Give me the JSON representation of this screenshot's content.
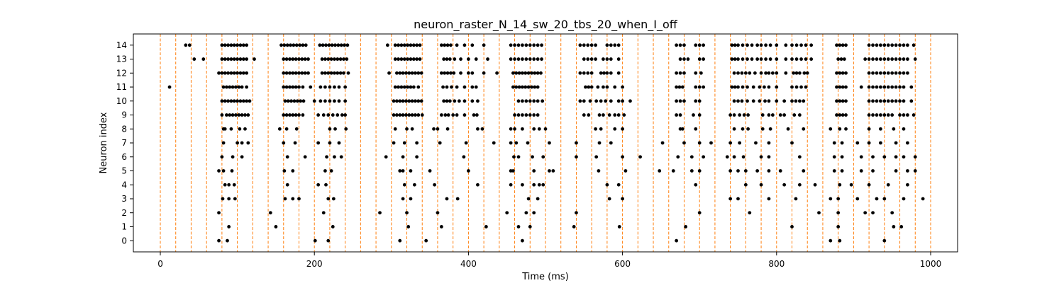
{
  "chart_data": {
    "type": "scatter",
    "title": "neuron_raster_N_14_sw_20_tbs_20_when_I_off",
    "xlabel": "Time (ms)",
    "ylabel": "Neuron index",
    "xlim": [
      -35,
      1035
    ],
    "ylim": [
      -0.8,
      14.8
    ],
    "xticks": [
      0,
      200,
      400,
      600,
      800,
      1000
    ],
    "yticks": [
      0,
      1,
      2,
      3,
      4,
      5,
      6,
      7,
      8,
      9,
      10,
      11,
      12,
      13,
      14
    ],
    "grid": false,
    "legend": "none",
    "marker_color": "#000000",
    "vline_color": "#ff7f0e",
    "vlines_x": [
      0,
      20,
      40,
      60,
      80,
      100,
      120,
      140,
      160,
      180,
      200,
      220,
      240,
      260,
      280,
      300,
      320,
      340,
      360,
      380,
      400,
      420,
      440,
      460,
      480,
      500,
      520,
      540,
      560,
      580,
      600,
      620,
      640,
      660,
      680,
      700,
      720,
      740,
      760,
      780,
      800,
      820,
      840,
      860,
      880,
      900,
      920,
      940,
      960,
      980,
      1000
    ],
    "series": [
      {
        "neuron": 0,
        "spike_times": [
          76,
          87,
          201,
          218,
          311,
          345,
          470,
          670,
          870,
          882,
          940
        ]
      },
      {
        "neuron": 1,
        "spike_times": [
          89,
          150,
          224,
          322,
          365,
          423,
          465,
          480,
          537,
          596,
          682,
          820,
          880,
          952,
          962
        ]
      },
      {
        "neuron": 2,
        "spike_times": [
          76,
          143,
          212,
          285,
          320,
          360,
          450,
          475,
          485,
          540,
          700,
          765,
          855,
          880,
          915,
          925,
          950
        ]
      },
      {
        "neuron": 3,
        "spike_times": [
          81,
          89,
          97,
          162,
          172,
          180,
          218,
          225,
          315,
          325,
          372,
          386,
          478,
          490,
          583,
          600,
          740,
          750,
          790,
          825,
          870,
          880,
          905,
          930,
          940,
          965,
          990
        ]
      },
      {
        "neuron": 4,
        "spike_times": [
          84,
          89,
          96,
          165,
          205,
          215,
          317,
          330,
          356,
          412,
          455,
          470,
          485,
          492,
          497,
          580,
          595,
          695,
          760,
          780,
          810,
          830,
          850,
          882,
          897,
          920,
          945,
          970
        ]
      },
      {
        "neuron": 5,
        "spike_times": [
          76,
          82,
          93,
          161,
          172,
          214,
          222,
          311,
          315,
          325,
          350,
          400,
          455,
          458,
          485,
          505,
          510,
          569,
          604,
          648,
          666,
          690,
          700,
          740,
          750,
          760,
          775,
          790,
          805,
          835,
          875,
          885,
          910,
          925,
          955,
          970,
          980
        ]
      },
      {
        "neuron": 6,
        "spike_times": [
          80,
          94,
          106,
          165,
          188,
          216,
          226,
          235,
          293,
          315,
          333,
          394,
          459,
          465,
          483,
          497,
          540,
          566,
          600,
          623,
          672,
          690,
          705,
          736,
          745,
          757,
          780,
          790,
          830,
          875,
          885,
          910,
          925,
          940,
          955,
          965,
          980
        ]
      },
      {
        "neuron": 7,
        "spike_times": [
          82,
          100,
          106,
          114,
          160,
          175,
          205,
          220,
          232,
          303,
          317,
          333,
          363,
          397,
          433,
          455,
          462,
          477,
          505,
          540,
          570,
          585,
          652,
          680,
          700,
          715,
          740,
          752,
          773,
          790,
          820,
          875,
          885,
          905,
          920,
          935,
          955,
          970
        ]
      },
      {
        "neuron": 8,
        "spike_times": [
          82,
          84,
          92,
          103,
          110,
          155,
          164,
          177,
          220,
          227,
          241,
          305,
          320,
          327,
          355,
          360,
          373,
          412,
          418,
          455,
          460,
          470,
          485,
          492,
          500,
          565,
          572,
          590,
          600,
          675,
          678,
          695,
          745,
          756,
          763,
          782,
          792,
          815,
          835,
          870,
          882,
          890,
          920,
          935,
          952,
          965
        ]
      },
      {
        "neuron": 9,
        "spike_times": [
          80,
          86,
          90,
          94,
          98,
          102,
          106,
          110,
          114,
          160,
          164,
          168,
          172,
          176,
          180,
          185,
          205,
          212,
          218,
          224,
          230,
          236,
          240,
          303,
          307,
          311,
          315,
          319,
          323,
          327,
          331,
          335,
          340,
          365,
          370,
          374,
          380,
          385,
          395,
          407,
          411,
          460,
          465,
          470,
          475,
          480,
          485,
          490,
          550,
          556,
          570,
          575,
          583,
          590,
          595,
          602,
          670,
          675,
          692,
          700,
          740,
          745,
          752,
          758,
          763,
          782,
          790,
          795,
          805,
          810,
          823,
          830,
          878,
          882,
          886,
          890,
          920,
          925,
          930,
          935,
          940,
          945,
          950,
          960,
          965,
          970,
          978
        ]
      },
      {
        "neuron": 10,
        "spike_times": [
          80,
          84,
          88,
          92,
          96,
          100,
          104,
          108,
          112,
          116,
          162,
          166,
          170,
          174,
          178,
          182,
          186,
          200,
          208,
          214,
          220,
          226,
          232,
          240,
          303,
          307,
          311,
          315,
          319,
          323,
          327,
          331,
          335,
          339,
          368,
          372,
          376,
          382,
          388,
          395,
          405,
          412,
          465,
          470,
          475,
          480,
          485,
          490,
          496,
          545,
          550,
          558,
          566,
          572,
          578,
          585,
          595,
          600,
          610,
          670,
          675,
          680,
          695,
          700,
          745,
          750,
          755,
          762,
          770,
          778,
          785,
          790,
          800,
          810,
          820,
          825,
          830,
          835,
          878,
          882,
          886,
          890,
          920,
          925,
          930,
          935,
          940,
          945,
          950,
          955,
          960,
          965,
          975
        ]
      },
      {
        "neuron": 11,
        "spike_times": [
          12,
          82,
          86,
          90,
          94,
          98,
          102,
          106,
          112,
          160,
          164,
          168,
          172,
          176,
          180,
          185,
          195,
          208,
          214,
          220,
          226,
          232,
          240,
          305,
          309,
          313,
          317,
          321,
          325,
          329,
          335,
          367,
          372,
          378,
          385,
          395,
          405,
          410,
          458,
          462,
          466,
          470,
          474,
          478,
          482,
          486,
          490,
          552,
          556,
          560,
          568,
          575,
          580,
          590,
          600,
          670,
          674,
          678,
          695,
          700,
          705,
          742,
          746,
          750,
          756,
          762,
          770,
          778,
          784,
          790,
          800,
          820,
          826,
          832,
          838,
          878,
          882,
          886,
          890,
          910,
          920,
          925,
          930,
          935,
          940,
          945,
          950,
          955,
          960,
          965,
          975
        ]
      },
      {
        "neuron": 12,
        "spike_times": [
          76,
          80,
          84,
          88,
          92,
          96,
          100,
          104,
          108,
          112,
          160,
          164,
          168,
          172,
          176,
          180,
          184,
          188,
          192,
          210,
          214,
          218,
          222,
          226,
          230,
          234,
          238,
          244,
          297,
          307,
          311,
          315,
          319,
          323,
          327,
          331,
          335,
          339,
          365,
          369,
          373,
          377,
          381,
          390,
          400,
          405,
          420,
          437,
          458,
          462,
          466,
          470,
          474,
          478,
          482,
          486,
          490,
          494,
          545,
          550,
          555,
          560,
          572,
          576,
          580,
          585,
          595,
          670,
          675,
          680,
          695,
          702,
          745,
          750,
          755,
          760,
          765,
          772,
          780,
          786,
          790,
          795,
          800,
          812,
          822,
          826,
          830,
          836,
          840,
          878,
          882,
          886,
          890,
          920,
          925,
          930,
          935,
          940,
          945,
          950,
          955,
          960,
          965,
          970
        ]
      },
      {
        "neuron": 13,
        "spike_times": [
          44,
          56,
          80,
          84,
          88,
          92,
          96,
          100,
          104,
          108,
          112,
          122,
          160,
          164,
          168,
          172,
          176,
          180,
          184,
          188,
          192,
          210,
          214,
          218,
          222,
          226,
          230,
          234,
          238,
          242,
          305,
          309,
          313,
          317,
          321,
          325,
          329,
          333,
          337,
          368,
          372,
          376,
          382,
          390,
          400,
          410,
          425,
          455,
          460,
          465,
          470,
          475,
          480,
          485,
          490,
          495,
          550,
          555,
          560,
          565,
          575,
          580,
          585,
          595,
          675,
          680,
          685,
          700,
          705,
          742,
          746,
          750,
          756,
          762,
          768,
          775,
          780,
          786,
          792,
          800,
          812,
          820,
          826,
          832,
          838,
          845,
          880,
          884,
          888,
          915,
          920,
          925,
          930,
          935,
          940,
          945,
          950,
          955,
          960,
          965,
          970,
          980
        ]
      },
      {
        "neuron": 14,
        "spike_times": [
          33,
          38,
          80,
          84,
          88,
          92,
          96,
          100,
          104,
          108,
          112,
          157,
          161,
          165,
          169,
          173,
          177,
          181,
          185,
          189,
          207,
          211,
          215,
          219,
          223,
          227,
          231,
          235,
          239,
          243,
          295,
          305,
          309,
          313,
          317,
          321,
          325,
          329,
          333,
          337,
          365,
          369,
          373,
          377,
          385,
          395,
          405,
          420,
          455,
          460,
          465,
          470,
          475,
          480,
          485,
          490,
          495,
          545,
          550,
          555,
          560,
          565,
          580,
          585,
          590,
          595,
          670,
          675,
          680,
          695,
          700,
          705,
          742,
          746,
          750,
          756,
          762,
          768,
          775,
          780,
          786,
          792,
          800,
          812,
          820,
          826,
          832,
          838,
          845,
          878,
          882,
          886,
          890,
          920,
          925,
          930,
          935,
          940,
          945,
          950,
          955,
          960,
          965,
          970,
          978
        ]
      }
    ]
  }
}
